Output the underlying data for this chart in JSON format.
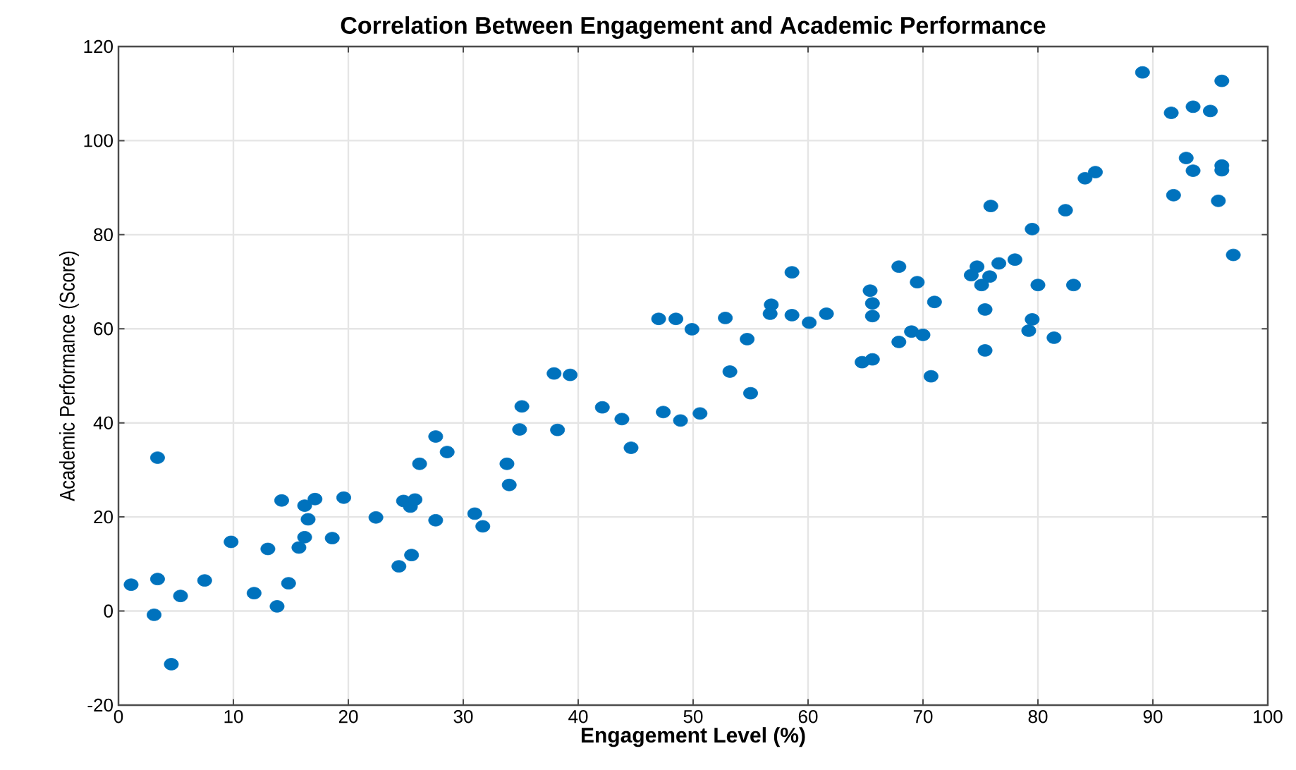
{
  "chart_data": {
    "type": "scatter",
    "title": "Correlation Between Engagement and Academic Performance",
    "xlabel": "Engagement Level (%)",
    "ylabel": "Academic Performance (Score)",
    "xlim": [
      0,
      100
    ],
    "ylim": [
      -20,
      120
    ],
    "xticks": [
      0,
      10,
      20,
      30,
      40,
      50,
      60,
      70,
      80,
      90,
      100
    ],
    "yticks": [
      -20,
      0,
      20,
      40,
      60,
      80,
      100,
      120
    ],
    "grid": true,
    "marker": "circle",
    "series": [
      {
        "color": "#0072bd",
        "x": [
          1.1,
          3.4,
          3.4,
          3.1,
          4.6,
          5.4,
          7.5,
          9.8,
          11.8,
          13.0,
          13.8,
          14.2,
          14.8,
          15.7,
          16.2,
          16.2,
          16.5,
          17.1,
          18.6,
          19.6,
          22.4,
          24.4,
          24.8,
          25.4,
          25.8,
          25.5,
          26.2,
          27.6,
          27.6,
          28.6,
          31.0,
          31.7,
          33.8,
          34.0,
          35.1,
          34.9,
          37.9,
          38.2,
          39.3,
          42.1,
          43.8,
          44.6,
          47.0,
          47.4,
          48.5,
          48.9,
          49.9,
          50.6,
          52.8,
          53.2,
          54.7,
          55.0,
          56.8,
          56.7,
          58.6,
          58.6,
          60.1,
          61.6,
          64.7,
          65.6,
          65.6,
          65.6,
          65.4,
          67.9,
          67.9,
          69.0,
          70.0,
          69.5,
          71.0,
          70.7,
          74.2,
          74.7,
          75.8,
          75.1,
          76.6,
          78.0,
          75.4,
          75.4,
          75.9,
          79.5,
          80.0,
          79.5,
          79.2,
          81.4,
          83.1,
          82.4,
          84.1,
          85.0,
          89.1,
          91.6,
          93.5,
          95.0,
          96.0,
          92.9,
          93.5,
          96.0,
          96.0,
          91.8,
          95.7,
          97.0
        ],
        "values": [
          5.6,
          32.6,
          6.8,
          -0.8,
          -11.3,
          3.2,
          6.5,
          14.7,
          3.8,
          13.2,
          1.0,
          23.5,
          5.9,
          13.5,
          15.7,
          22.4,
          19.5,
          23.8,
          15.5,
          24.1,
          19.9,
          9.5,
          23.4,
          22.2,
          23.7,
          11.9,
          31.3,
          37.1,
          19.3,
          33.8,
          20.7,
          18.0,
          31.3,
          26.8,
          43.5,
          38.6,
          50.5,
          38.5,
          50.2,
          43.3,
          40.8,
          34.7,
          62.1,
          42.3,
          62.1,
          40.5,
          59.9,
          42.0,
          62.3,
          50.9,
          57.8,
          46.3,
          65.1,
          63.2,
          72.0,
          62.9,
          61.3,
          63.2,
          52.9,
          53.5,
          65.4,
          62.7,
          68.1,
          73.2,
          57.2,
          59.4,
          58.7,
          69.9,
          65.7,
          49.9,
          71.4,
          73.2,
          71.1,
          69.3,
          73.9,
          74.7,
          64.1,
          55.4,
          86.1,
          81.2,
          69.3,
          62.0,
          59.6,
          58.1,
          69.3,
          85.2,
          92.0,
          93.3,
          114.5,
          105.9,
          107.2,
          106.3,
          112.7,
          96.3,
          93.6,
          94.7,
          93.7,
          88.4,
          87.2,
          75.7
        ]
      }
    ]
  }
}
